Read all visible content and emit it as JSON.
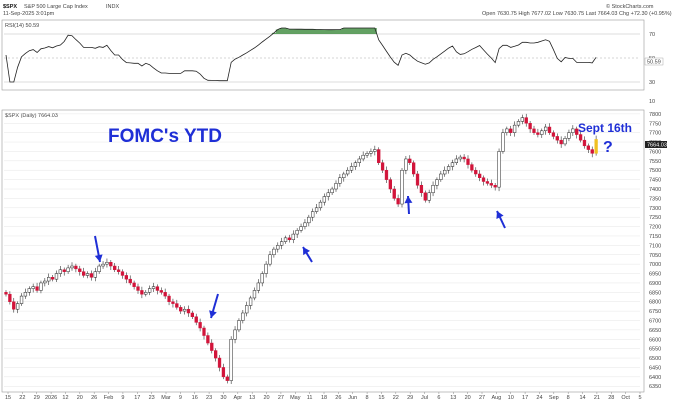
{
  "header": {
    "symbol": "$SPX",
    "name": "S&P 500 Large Cap Index",
    "exchange": "INDX",
    "date": "11-Sep-2025 3:01pm",
    "ohlc": "Open 7630.75  High 7677.02  Low 7630.75  Last 7664.03  Chg +72.30 (+0.95%)",
    "source": "© StockCharts.com"
  },
  "rsi": {
    "label": "RSI(14) 50.59",
    "value": "50.59",
    "levels": [
      70,
      50,
      30
    ],
    "level_labels": [
      "70",
      "50",
      "30"
    ],
    "overbought_color": "#3c8a3c",
    "line_color": "#222222"
  },
  "price_panel": {
    "label": "$SPX (Daily) 7664.03",
    "last_value": "7664.03",
    "y_ticks": [
      "7800",
      "7750",
      "7700",
      "7650",
      "7600",
      "7550",
      "7500",
      "7450",
      "7400",
      "7350",
      "7300",
      "7250",
      "7200",
      "7150",
      "7100",
      "7050",
      "7000",
      "6950",
      "6900",
      "6850",
      "6800",
      "6750",
      "6700",
      "6650",
      "6600",
      "6550",
      "6500",
      "6450",
      "6400",
      "6350"
    ],
    "top_label": "10",
    "up_color": "#ffffff",
    "down_color": "#d2143a",
    "last_color": "#f0c020"
  },
  "x_axis": {
    "labels": [
      "15",
      "22",
      "29",
      "2026",
      "12",
      "20",
      "26",
      "Feb",
      "9",
      "17",
      "23",
      "Mar",
      "9",
      "16",
      "23",
      "30",
      "Apr",
      "13",
      "20",
      "27",
      "May",
      "11",
      "18",
      "26",
      "Jun",
      "8",
      "15",
      "22",
      "29",
      "Jul",
      "6",
      "13",
      "20",
      "27",
      "Aug",
      "10",
      "17",
      "24",
      "Sep",
      "8",
      "14",
      "21",
      "28",
      "Oct",
      "5"
    ]
  },
  "annotations": {
    "title": "FOMC's YTD",
    "sept_label": "Sept 16th",
    "question": "?",
    "arrow_color": "#1f2fd6"
  },
  "chart_data": {
    "type": "candlestick",
    "series": [
      {
        "name": "$SPX (Daily)",
        "close": [
          6840,
          6800,
          6760,
          6790,
          6830,
          6850,
          6870,
          6880,
          6860,
          6900,
          6910,
          6930,
          6920,
          6950,
          6970,
          6960,
          6980,
          6990,
          6975,
          6960,
          6940,
          6950,
          6930,
          6960,
          6990,
          7000,
          7010,
          6990,
          6970,
          6960,
          6940,
          6920,
          6900,
          6880,
          6860,
          6840,
          6850,
          6870,
          6880,
          6860,
          6850,
          6830,
          6800,
          6790,
          6770,
          6750,
          6760,
          6740,
          6720,
          6690,
          6660,
          6620,
          6580,
          6540,
          6500,
          6450,
          6400,
          6380,
          6600,
          6650,
          6700,
          6740,
          6780,
          6820,
          6860,
          6900,
          6950,
          7000,
          7050,
          7080,
          7100,
          7120,
          7140,
          7130,
          7160,
          7180,
          7200,
          7220,
          7250,
          7280,
          7300,
          7330,
          7360,
          7380,
          7400,
          7430,
          7460,
          7480,
          7500,
          7520,
          7540,
          7560,
          7580,
          7590,
          7600,
          7610,
          7540,
          7500,
          7450,
          7400,
          7350,
          7320,
          7500,
          7560,
          7540,
          7480,
          7420,
          7380,
          7340,
          7380,
          7420,
          7450,
          7480,
          7500,
          7520,
          7540,
          7560,
          7570,
          7560,
          7530,
          7500,
          7480,
          7460,
          7440,
          7430,
          7420,
          7410,
          7600,
          7700,
          7720,
          7700,
          7740,
          7760,
          7780,
          7750,
          7720,
          7700,
          7690,
          7710,
          7730,
          7700,
          7680,
          7660,
          7640,
          7670,
          7700,
          7720,
          7690,
          7660,
          7630,
          7610,
          7590,
          7664.03
        ],
        "last": 7664.03
      },
      {
        "name": "RSI(14)",
        "last": 50.59
      }
    ],
    "ylim": [
      6330,
      7810
    ],
    "rsi_ylim": [
      25,
      80
    ],
    "x_tick_labels": [
      "15",
      "22",
      "29",
      "2026",
      "12",
      "20",
      "26",
      "Feb",
      "9",
      "17",
      "23",
      "Mar",
      "9",
      "16",
      "23",
      "30",
      "Apr",
      "13",
      "20",
      "27",
      "May",
      "11",
      "18",
      "26",
      "Jun",
      "8",
      "15",
      "22",
      "29",
      "Jul",
      "6",
      "13",
      "20",
      "27",
      "Aug",
      "10",
      "17",
      "24",
      "Sep",
      "8",
      "14",
      "21",
      "28",
      "Oct",
      "5"
    ],
    "annotations": [
      "FOMC's YTD",
      "Sept 16th",
      "?"
    ],
    "legend": "top-left",
    "grid": true
  }
}
